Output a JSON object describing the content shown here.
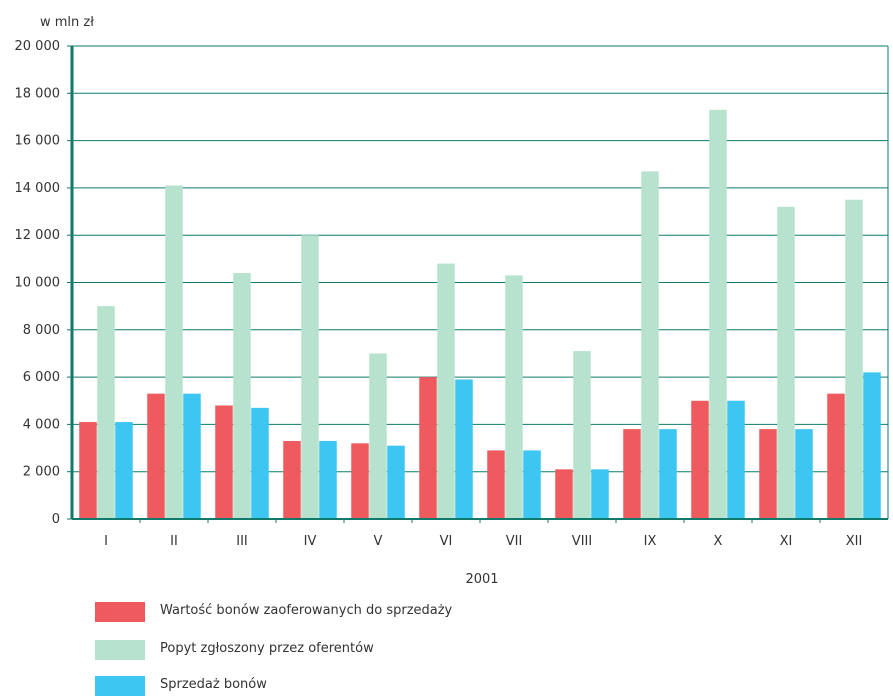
{
  "chart_data": {
    "type": "bar",
    "unit_label": "w mln zł",
    "xlabel": "2001",
    "categories": [
      "I",
      "II",
      "III",
      "IV",
      "V",
      "VI",
      "VII",
      "VIII",
      "IX",
      "X",
      "XI",
      "XII"
    ],
    "ylim": [
      0,
      20000
    ],
    "yticks": [
      0,
      2000,
      4000,
      6000,
      8000,
      10000,
      12000,
      14000,
      16000,
      18000,
      20000
    ],
    "ytick_labels": [
      "0",
      "2 000",
      "4 000",
      "6 000",
      "8 000",
      "10 000",
      "12 000",
      "14 000",
      "16 000",
      "18 000",
      "20 000"
    ],
    "grid": true,
    "legend_position": "bottom",
    "series": [
      {
        "name": "Wartość bonów zaoferowanych do sprzedaży",
        "color": "#ee5a5e",
        "values": [
          4100,
          5300,
          4800,
          3300,
          3200,
          6000,
          2900,
          2100,
          3800,
          5000,
          3800,
          5300
        ]
      },
      {
        "name": "Popyt zgłoszony przez oferentów",
        "color": "#b7e2cd",
        "values": [
          9000,
          14100,
          10400,
          12000,
          7000,
          10800,
          10300,
          7100,
          14700,
          17300,
          13200,
          13500
        ]
      },
      {
        "name": "Sprzedaż bonów",
        "color": "#3ec6f2",
        "values": [
          4100,
          5300,
          4700,
          3300,
          3100,
          5900,
          2900,
          2100,
          3800,
          5000,
          3800,
          6200
        ]
      }
    ],
    "colors": {
      "grid": "#0f7a6b",
      "axis": "#0f7a6b"
    }
  }
}
